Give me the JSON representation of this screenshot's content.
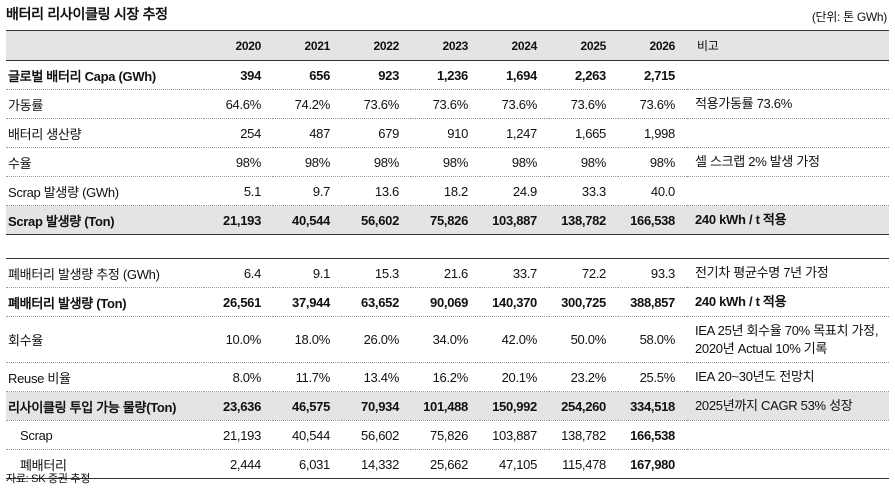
{
  "title": "배터리 리사이클링 시장 추정",
  "unit": "(단위: 톤 GWh)",
  "header": {
    "label": "",
    "years": [
      "2020",
      "2021",
      "2022",
      "2023",
      "2024",
      "2025",
      "2026"
    ],
    "note": "비고"
  },
  "rows": [
    {
      "label": "글로벌 배터리 Capa (GWh)",
      "values": [
        "394",
        "656",
        "923",
        "1,236",
        "1,694",
        "2,263",
        "2,715"
      ],
      "note": ""
    },
    {
      "label": "가동률",
      "values": [
        "64.6%",
        "74.2%",
        "73.6%",
        "73.6%",
        "73.6%",
        "73.6%",
        "73.6%"
      ],
      "note": "적용가동률 73.6%"
    },
    {
      "label": "배터리 생산량",
      "values": [
        "254",
        "487",
        "679",
        "910",
        "1,247",
        "1,665",
        "1,998"
      ],
      "note": ""
    },
    {
      "label": "수율",
      "values": [
        "98%",
        "98%",
        "98%",
        "98%",
        "98%",
        "98%",
        "98%"
      ],
      "note": "셀 스크랩 2% 발생 가정"
    },
    {
      "label": "Scrap 발생량 (GWh)",
      "values": [
        "5.1",
        "9.7",
        "13.6",
        "18.2",
        "24.9",
        "33.3",
        "40.0"
      ],
      "note": ""
    },
    {
      "label": "Scrap 발생량 (Ton)",
      "values": [
        "21,193",
        "40,544",
        "56,602",
        "75,826",
        "103,887",
        "138,782",
        "166,538"
      ],
      "note": "240 kWh / t 적용"
    },
    {
      "label": "폐배터리 발생량 추정 (GWh)",
      "values": [
        "6.4",
        "9.1",
        "15.3",
        "21.6",
        "33.7",
        "72.2",
        "93.3"
      ],
      "note": "전기차 평균수명 7년 가정"
    },
    {
      "label": "폐배터리 발생량 (Ton)",
      "values": [
        "26,561",
        "37,944",
        "63,652",
        "90,069",
        "140,370",
        "300,725",
        "388,857"
      ],
      "note": "240 kWh / t 적용"
    },
    {
      "label": "회수율",
      "values": [
        "10.0%",
        "18.0%",
        "26.0%",
        "34.0%",
        "42.0%",
        "50.0%",
        "58.0%"
      ],
      "note": "IEA 25년 회수율 70% 목표치 가정, 2020년 Actual 10% 기록"
    },
    {
      "label": "Reuse 비율",
      "values": [
        "8.0%",
        "11.7%",
        "13.4%",
        "16.2%",
        "20.1%",
        "23.2%",
        "25.5%"
      ],
      "note": "IEA 20~30년도 전망치"
    },
    {
      "label": "리사이클링 투입 가능 물량(Ton)",
      "values": [
        "23,636",
        "46,575",
        "70,934",
        "101,488",
        "150,992",
        "254,260",
        "334,518"
      ],
      "note": "2025년까지 CAGR 53% 성장"
    },
    {
      "label": "Scrap",
      "values": [
        "21,193",
        "40,544",
        "56,602",
        "75,826",
        "103,887",
        "138,782",
        "166,538"
      ],
      "note": ""
    },
    {
      "label": "폐배터리",
      "values": [
        "2,444",
        "6,031",
        "14,332",
        "25,662",
        "47,105",
        "115,478",
        "167,980"
      ],
      "note": ""
    }
  ],
  "source": "자료: SK 증권 추정"
}
